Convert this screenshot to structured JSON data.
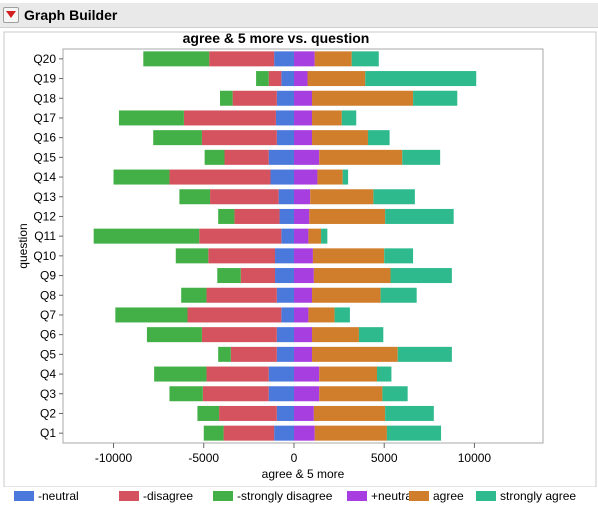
{
  "app": {
    "title": "Graph Builder",
    "disclosure_icon": "red-triangle-menu-icon"
  },
  "colors": {
    "neg_neutral": "#4a78db",
    "neg_disagree": "#d4535f",
    "neg_strongly": "#43b047",
    "pos_neutral": "#a63ee0",
    "pos_agree": "#d07e2b",
    "pos_strongly": "#2fba8e",
    "menu_icon": "#d21f1f"
  },
  "legend": [
    {
      "label": "-neutral",
      "color": "#4a78db"
    },
    {
      "label": "-disagree",
      "color": "#d4535f"
    },
    {
      "label": "-strongly disagree",
      "color": "#43b047"
    },
    {
      "label": "+neutral",
      "color": "#a63ee0"
    },
    {
      "label": "agree",
      "color": "#d07e2b"
    },
    {
      "label": "strongly agree",
      "color": "#2fba8e"
    }
  ],
  "chart_data": {
    "type": "bar",
    "orientation": "horizontal",
    "stacked": "diverging",
    "title": "agree & 5 more vs. question",
    "xlabel": "agree & 5 more",
    "ylabel": "question",
    "xlim": [
      -12800,
      13800
    ],
    "xticks": [
      -10000,
      -5000,
      0,
      5000,
      10000
    ],
    "xtick_labels": [
      "-10000",
      "-5000",
      "0",
      "5000",
      "10000"
    ],
    "grid": false,
    "legend_position": "bottom",
    "categories": [
      "Q20",
      "Q19",
      "Q18",
      "Q17",
      "Q16",
      "Q15",
      "Q14",
      "Q13",
      "Q12",
      "Q11",
      "Q10",
      "Q9",
      "Q8",
      "Q7",
      "Q6",
      "Q5",
      "Q4",
      "Q3",
      "Q2",
      "Q1"
    ],
    "series": [
      {
        "name": "-neutral",
        "values": [
          -1100,
          -700,
          -950,
          -1000,
          -950,
          -1400,
          -1300,
          -850,
          -800,
          -700,
          -1050,
          -1050,
          -950,
          -700,
          -950,
          -950,
          -1400,
          -1400,
          -950,
          -1100
        ]
      },
      {
        "name": "-disagree",
        "values": [
          -3600,
          -700,
          -2450,
          -5100,
          -4150,
          -2450,
          -5600,
          -3800,
          -2500,
          -4550,
          -3700,
          -1900,
          -3900,
          -5200,
          -4150,
          -2550,
          -3450,
          -3650,
          -3200,
          -2800
        ]
      },
      {
        "name": "-strongly disagree",
        "values": [
          -3650,
          -700,
          -700,
          -3600,
          -2700,
          -1100,
          -3100,
          -1700,
          -900,
          -5850,
          -1800,
          -1300,
          -1400,
          -4000,
          -3050,
          -700,
          -2900,
          -1850,
          -1200,
          -1100
        ]
      },
      {
        "name": "+neutral",
        "values": [
          1150,
          750,
          1000,
          1000,
          1000,
          1400,
          1300,
          900,
          850,
          800,
          1050,
          1100,
          1000,
          800,
          1000,
          1000,
          1400,
          1400,
          1100,
          1150
        ]
      },
      {
        "name": "agree",
        "values": [
          2050,
          3200,
          5600,
          1650,
          3100,
          4600,
          1400,
          3500,
          4200,
          700,
          3950,
          4250,
          3800,
          1450,
          2600,
          4750,
          3200,
          3500,
          3950,
          4000
        ]
      },
      {
        "name": "strongly agree",
        "values": [
          1500,
          6150,
          2450,
          800,
          1200,
          2100,
          300,
          2300,
          3800,
          350,
          1600,
          3400,
          2000,
          850,
          1350,
          3000,
          800,
          1400,
          2700,
          3000
        ]
      }
    ]
  }
}
